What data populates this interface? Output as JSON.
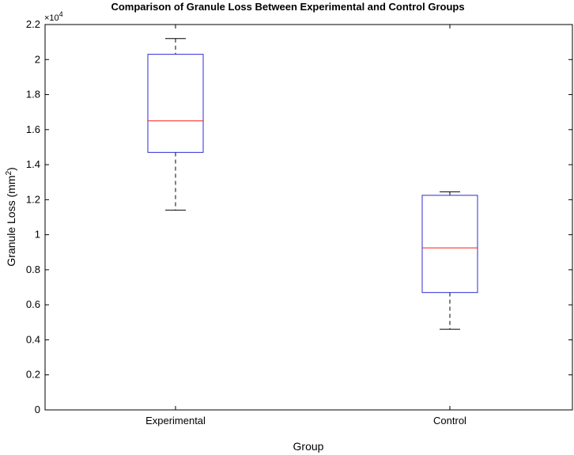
{
  "chart_data": {
    "type": "box",
    "title": "Comparison of Granule Loss Between Experimental and Control Groups",
    "xlabel": "Group",
    "ylabel": "Granule Loss (mm",
    "ylabel_superscript": "2",
    "ylabel_suffix": ")",
    "y_multiplier_base": "×10",
    "y_multiplier_exponent": "4",
    "ylim": [
      0,
      22000
    ],
    "yticks": [
      0,
      2000,
      4000,
      6000,
      8000,
      10000,
      12000,
      14000,
      16000,
      18000,
      20000,
      22000
    ],
    "ytick_labels": [
      "0",
      "0.2",
      "0.4",
      "0.6",
      "0.8",
      "1",
      "1.2",
      "1.4",
      "1.6",
      "1.8",
      "2",
      "2.2"
    ],
    "categories": [
      "Experimental",
      "Control"
    ],
    "boxes": [
      {
        "category": "Experimental",
        "whisker_low": 11400,
        "q1": 14700,
        "median": 16500,
        "q3": 20300,
        "whisker_high": 21200
      },
      {
        "category": "Control",
        "whisker_low": 4600,
        "q1": 6700,
        "median": 9250,
        "q3": 12250,
        "whisker_high": 12450
      }
    ],
    "colors": {
      "box": "#2b2bd6",
      "median": "#ff1a1a",
      "whisker": "#000000",
      "axes": "#000000"
    },
    "grid": false
  }
}
